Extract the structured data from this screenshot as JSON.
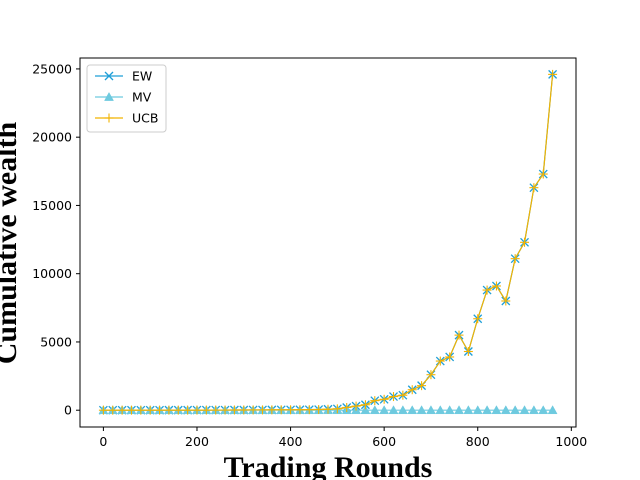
{
  "chart_data": {
    "type": "line",
    "xlabel": "Trading Rounds",
    "ylabel": "Cumulative wealth",
    "xlim": [
      -50,
      1010
    ],
    "ylim": [
      -1230,
      25800
    ],
    "xticks": [
      0,
      200,
      400,
      600,
      800,
      1000
    ],
    "yticks": [
      0,
      5000,
      10000,
      15000,
      20000,
      25000
    ],
    "grid": false,
    "legend_position": "top-left",
    "x": [
      0,
      20,
      40,
      60,
      80,
      100,
      120,
      140,
      160,
      180,
      200,
      220,
      240,
      260,
      280,
      300,
      320,
      340,
      360,
      380,
      400,
      420,
      440,
      460,
      480,
      500,
      520,
      540,
      560,
      580,
      600,
      620,
      640,
      660,
      680,
      700,
      720,
      740,
      760,
      780,
      800,
      820,
      840,
      860,
      880,
      900,
      920,
      940,
      960
    ],
    "series": [
      {
        "name": "EW",
        "color": "#1f9fd8",
        "marker": "x",
        "values": [
          1,
          1,
          2,
          2,
          3,
          3,
          4,
          5,
          6,
          7,
          8,
          9,
          10,
          12,
          14,
          16,
          18,
          20,
          25,
          28,
          30,
          35,
          40,
          50,
          70,
          100,
          200,
          300,
          400,
          700,
          800,
          1000,
          1100,
          1500,
          1800,
          2600,
          3600,
          3900,
          5500,
          4300,
          6700,
          8800,
          9100,
          8000,
          11100,
          12300,
          16300,
          17300,
          24600
        ]
      },
      {
        "name": "MV",
        "color": "#6ecadf",
        "marker": "triangle",
        "values": [
          1,
          1,
          1,
          1,
          1,
          1,
          1,
          1,
          1,
          1,
          1,
          1,
          1,
          1,
          1,
          1,
          1,
          1,
          1,
          1,
          1,
          1,
          1,
          1,
          1,
          1,
          1,
          1,
          1,
          1,
          1,
          1,
          1,
          1,
          1,
          1,
          1,
          1,
          1,
          1,
          1,
          1,
          1,
          1,
          1,
          1,
          1,
          1,
          1
        ]
      },
      {
        "name": "UCB",
        "color": "#f2b300",
        "marker": "plus",
        "values": [
          1,
          1,
          2,
          2,
          3,
          3,
          4,
          5,
          6,
          7,
          8,
          9,
          10,
          12,
          14,
          16,
          18,
          20,
          25,
          28,
          30,
          35,
          40,
          50,
          70,
          100,
          200,
          300,
          400,
          700,
          800,
          1000,
          1100,
          1500,
          1800,
          2600,
          3600,
          3900,
          5500,
          4300,
          6700,
          8800,
          9100,
          8000,
          11100,
          12300,
          16300,
          17300,
          24600
        ]
      }
    ]
  }
}
